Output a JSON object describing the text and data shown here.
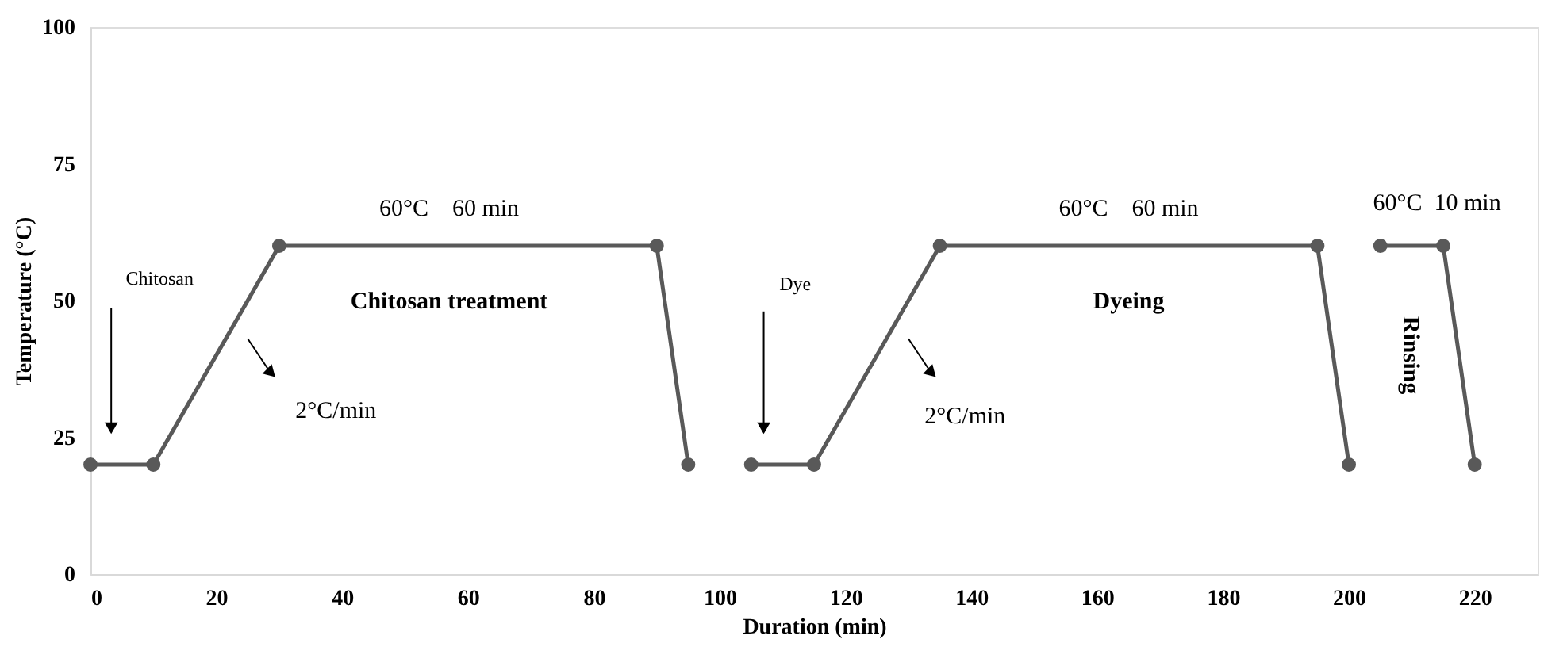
{
  "chart_data": {
    "type": "line",
    "xlabel": "Duration (min)",
    "ylabel": "Temperature (°C)",
    "xlim": [
      0,
      230
    ],
    "xticks": [
      0,
      20,
      40,
      60,
      80,
      100,
      120,
      140,
      160,
      180,
      200,
      220
    ],
    "ylim": [
      0,
      100
    ],
    "yticks": [
      0,
      25,
      50,
      75,
      100
    ],
    "marker": "circle",
    "line_style": "solid",
    "series": [
      {
        "color": "#595959",
        "x": [
          0,
          10,
          30,
          90,
          95
        ],
        "values": [
          20,
          20,
          60,
          60,
          20
        ]
      },
      {
        "color": "#595959",
        "x": [
          105,
          115,
          135,
          195,
          200
        ],
        "values": [
          20,
          20,
          60,
          60,
          20
        ]
      },
      {
        "color": "#595959",
        "x": [
          205,
          215,
          220
        ],
        "values": [
          60,
          60,
          20
        ]
      }
    ],
    "annotations": [
      "Chitosan",
      "60°C    60 min",
      "Chitosan treatment",
      "2°C/min",
      "Dye",
      "60°C    60 min",
      "Dyeing",
      "2°C/min",
      "60°C  10 min",
      "Rinsing"
    ]
  }
}
